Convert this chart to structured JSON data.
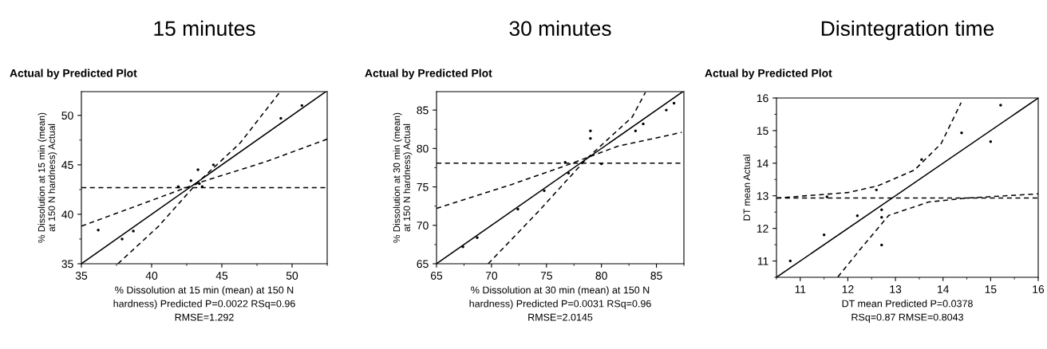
{
  "chart_data": [
    {
      "type": "scatter",
      "title": "15 minutes",
      "subtitle": "Actual by Predicted Plot",
      "xlabel": "% Dissolution at 15 min (mean) at 150 N\nhardness) Predicted P=0.0022 RSq=0.96\nRMSE=1.292",
      "ylabel": "% Dissolution at 15 min (mean)\nat 150 N hardness) Actual",
      "xlim": [
        35,
        52.5
      ],
      "ylim": [
        35,
        52.4
      ],
      "xticks": [
        35,
        40,
        45,
        50
      ],
      "yticks": [
        35,
        40,
        45,
        50
      ],
      "grid": false,
      "legend": false,
      "series": [
        {
          "marker": "circle",
          "color": "#000000",
          "x": [
            36.2,
            37.9,
            38.7,
            41.9,
            42.8,
            43.3,
            43.4,
            43.6,
            44.4,
            49.2,
            50.7
          ],
          "values": [
            38.4,
            37.5,
            38.3,
            42.8,
            43.4,
            44.5,
            43.1,
            42.8,
            45.0,
            49.7,
            51.0
          ]
        },
        {
          "type": "line",
          "line_style": "solid",
          "color": "#000000",
          "x": [
            35,
            52.4
          ],
          "values": [
            35,
            52.4
          ]
        },
        {
          "type": "line",
          "line_style": "dashed",
          "color": "#000000",
          "x": [
            35,
            39.8,
            43.6,
            48.1,
            52.5
          ],
          "values": [
            38.8,
            41.3,
            43.3,
            45.3,
            47.6
          ]
        },
        {
          "type": "line",
          "line_style": "dashed",
          "color": "#000000",
          "x": [
            37.6,
            40.5,
            43.2,
            46.3,
            49.1
          ],
          "values": [
            35,
            38.8,
            43.1,
            47.2,
            52.3
          ]
        }
      ],
      "ref_lines": [
        {
          "axis": "y",
          "value": 42.7,
          "line_style": "dashed",
          "color": "#000000"
        }
      ]
    },
    {
      "type": "scatter",
      "title": "30 minutes",
      "subtitle": "Actual by Predicted Plot",
      "xlabel": "% Dissolution at 30 min (mean) at 150 N\nhardness) Predicted P=0.0031 RSq=0.96\nRMSE=2.0145",
      "ylabel": "% Dissolution at 30 min (mean)\nat 150 N hardness) Actual",
      "xlim": [
        65,
        87.5
      ],
      "ylim": [
        65,
        87.4
      ],
      "xticks": [
        65,
        70,
        75,
        80,
        85
      ],
      "yticks": [
        65,
        70,
        75,
        80,
        85
      ],
      "grid": false,
      "legend": false,
      "series": [
        {
          "marker": "circle",
          "color": "#000000",
          "x": [
            67.4,
            68.7,
            72.4,
            74.8,
            77.0,
            76.7,
            79.0,
            79.0,
            83.1,
            83.8,
            85.9,
            86.6,
            80.0
          ],
          "values": [
            67.2,
            68.4,
            72.1,
            74.5,
            76.8,
            78.2,
            82.3,
            81.3,
            82.3,
            83.2,
            85.0,
            85.9,
            78.0
          ]
        },
        {
          "type": "line",
          "line_style": "solid",
          "color": "#000000",
          "x": [
            65,
            87.4
          ],
          "values": [
            65,
            87.4
          ]
        },
        {
          "type": "line",
          "line_style": "dashed",
          "color": "#000000",
          "x": [
            65,
            71.8,
            76.6,
            81.5,
            87.3
          ],
          "values": [
            72.2,
            75.3,
            77.7,
            80.3,
            82.1
          ]
        },
        {
          "type": "line",
          "line_style": "dashed",
          "color": "#000000",
          "x": [
            69.7,
            74.2,
            78.6,
            82.8,
            84.0
          ],
          "values": [
            65,
            71.7,
            78.6,
            84.1,
            87.3
          ]
        }
      ],
      "ref_lines": [
        {
          "axis": "y",
          "value": 78.1,
          "line_style": "dashed",
          "color": "#000000"
        }
      ]
    },
    {
      "type": "scatter",
      "title": "Disintegration time",
      "subtitle": "Actual by Predicted Plot",
      "xlabel": "DT mean Predicted P=0.0378\nRSq=0.87 RMSE=0.8043",
      "ylabel": "DT mean Actual",
      "xlim": [
        10.5,
        16
      ],
      "ylim": [
        10.5,
        16
      ],
      "xticks": [
        11,
        12,
        13,
        14,
        15,
        16
      ],
      "yticks": [
        11,
        12,
        13,
        14,
        15,
        16
      ],
      "grid": false,
      "legend": false,
      "series": [
        {
          "marker": "circle",
          "color": "#000000",
          "x": [
            10.79,
            11.5,
            11.56,
            12.2,
            12.6,
            12.71,
            12.71,
            12.71,
            13.55,
            14.39,
            15.0,
            15.21
          ],
          "values": [
            11.0,
            11.8,
            12.97,
            12.39,
            13.18,
            12.57,
            12.34,
            11.49,
            14.11,
            14.93,
            14.66,
            15.78
          ]
        },
        {
          "type": "line",
          "line_style": "solid",
          "color": "#000000",
          "x": [
            10.5,
            16
          ],
          "values": [
            10.5,
            16
          ]
        },
        {
          "type": "line",
          "line_style": "dashed",
          "color": "#000000",
          "x": [
            10.5,
            12.0,
            12.62,
            13.4,
            13.96,
            14.38
          ],
          "values": [
            12.93,
            13.1,
            13.3,
            13.79,
            14.6,
            15.86
          ]
        },
        {
          "type": "line",
          "line_style": "dashed",
          "color": "#000000",
          "x": [
            11.79,
            12.3,
            12.86,
            13.7,
            14.5,
            16
          ],
          "values": [
            10.51,
            11.43,
            12.4,
            12.81,
            12.93,
            13.06
          ]
        }
      ],
      "ref_lines": [
        {
          "axis": "y",
          "value": 12.93,
          "line_style": "dashed",
          "color": "#000000"
        }
      ]
    }
  ]
}
